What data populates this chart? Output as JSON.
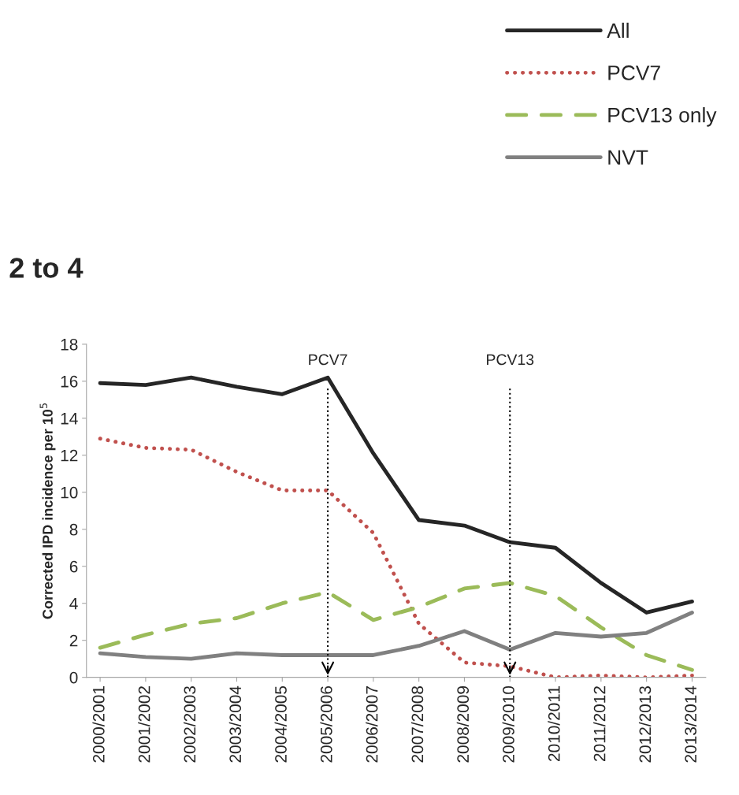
{
  "chart_data": {
    "type": "line",
    "title": "2 to 4",
    "ylabel": "Corrected IPD incidence per 10$^{5}$",
    "categories": [
      "2000/2001",
      "2001/2002",
      "2002/2003",
      "2003/2004",
      "2004/2005",
      "2005/2006",
      "2006/2007",
      "2007/2008",
      "2008/2009",
      "2009/2010",
      "2010/2011",
      "2011/2012",
      "2012/2013",
      "2013/2014"
    ],
    "series": [
      {
        "name": "All",
        "color": "#262626",
        "line_style": "solid",
        "values": [
          15.9,
          15.8,
          16.2,
          15.7,
          15.3,
          16.2,
          12.1,
          8.5,
          8.2,
          7.3,
          7.0,
          5.1,
          3.5,
          4.1
        ]
      },
      {
        "name": "PCV7",
        "color": "#c0504d",
        "line_style": "dotted",
        "values": [
          12.9,
          12.4,
          12.3,
          11.1,
          10.1,
          10.1,
          7.8,
          2.9,
          0.8,
          0.6,
          0.0,
          0.1,
          0.0,
          0.1
        ]
      },
      {
        "name": "PCV13 only",
        "color": "#9bbb59",
        "line_style": "dashed",
        "values": [
          1.6,
          2.3,
          2.9,
          3.2,
          4.0,
          4.6,
          3.1,
          3.8,
          4.8,
          5.1,
          4.4,
          2.7,
          1.2,
          0.4
        ]
      },
      {
        "name": "NVT",
        "color": "#808080",
        "line_style": "solid",
        "values": [
          1.3,
          1.1,
          1.0,
          1.3,
          1.2,
          1.2,
          1.2,
          1.7,
          2.5,
          1.5,
          2.4,
          2.2,
          2.4,
          3.5
        ]
      }
    ],
    "ref_lines": [
      {
        "axis": "x",
        "value": "2005/2006",
        "label": "PCV7",
        "color": "#000000",
        "line_style": "dotted"
      },
      {
        "axis": "x",
        "value": "2009/2010",
        "label": "PCV13",
        "color": "#000000",
        "line_style": "dotted"
      }
    ],
    "ylim": [
      0,
      18
    ],
    "yticks": [
      0,
      2,
      4,
      6,
      8,
      10,
      12,
      14,
      16,
      18
    ],
    "grid": false,
    "legend": "top right",
    "marker": "none"
  }
}
